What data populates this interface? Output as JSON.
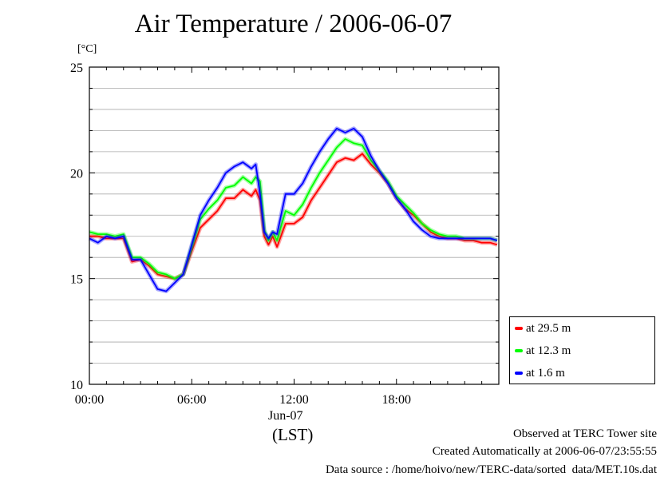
{
  "title": "Air Temperature / 2006-06-07",
  "unit_label": "[°C]",
  "date_label": "Jun-07",
  "tz_label": "(LST)",
  "footer": {
    "line1": "Observed at TERC Tower site",
    "line2": "Created Automatically at 2006-06-07/23:55:55",
    "line3": "Data source : /home/hoivo/new/TERC-data/sorted  data/MET.10s.dat"
  },
  "chart_data": {
    "type": "line",
    "title": "Air Temperature / 2006-06-07",
    "ylabel": "[°C]",
    "xlabel": "(LST)",
    "xlim": [
      0,
      24
    ],
    "ylim": [
      10,
      25
    ],
    "x_ticks": [
      {
        "value": 0,
        "label": "00:00"
      },
      {
        "value": 6,
        "label": "06:00"
      },
      {
        "value": 12,
        "label": "12:00"
      },
      {
        "value": 18,
        "label": "18:00"
      }
    ],
    "y_ticks": [
      10,
      15,
      20,
      25
    ],
    "grid": true,
    "legend_position": "right-bottom",
    "x": [
      0,
      0.5,
      1,
      1.5,
      2,
      2.5,
      3,
      3.5,
      4,
      4.5,
      5,
      5.5,
      6,
      6.5,
      7,
      7.5,
      8,
      8.5,
      9,
      9.5,
      9.75,
      10,
      10.25,
      10.5,
      10.75,
      11,
      11.5,
      12,
      12.5,
      13,
      13.5,
      14,
      14.5,
      15,
      15.5,
      16,
      16.5,
      17,
      17.5,
      18,
      18.5,
      19,
      19.5,
      20,
      20.5,
      21,
      21.5,
      22,
      22.5,
      23,
      23.5,
      23.9
    ],
    "series": [
      {
        "name": "at 29.5 m",
        "color": "#ff0000",
        "values": [
          17.0,
          17.0,
          16.9,
          16.9,
          16.9,
          15.8,
          15.9,
          15.6,
          15.2,
          15.1,
          15.0,
          15.2,
          16.3,
          17.4,
          17.8,
          18.2,
          18.8,
          18.8,
          19.2,
          18.9,
          19.2,
          18.7,
          17.0,
          16.6,
          17.0,
          16.5,
          17.6,
          17.6,
          17.9,
          18.7,
          19.3,
          19.9,
          20.5,
          20.7,
          20.6,
          20.9,
          20.4,
          20.0,
          19.5,
          18.8,
          18.3,
          18.0,
          17.6,
          17.2,
          17.0,
          16.9,
          16.9,
          16.8,
          16.8,
          16.7,
          16.7,
          16.6
        ]
      },
      {
        "name": "at 12.3 m",
        "color": "#00ff00",
        "values": [
          17.2,
          17.1,
          17.1,
          17.0,
          17.1,
          16.0,
          16.0,
          15.7,
          15.3,
          15.2,
          15.0,
          15.2,
          16.5,
          17.8,
          18.3,
          18.7,
          19.3,
          19.4,
          19.8,
          19.5,
          19.8,
          19.6,
          17.3,
          16.8,
          17.2,
          16.8,
          18.2,
          18.0,
          18.5,
          19.3,
          20.0,
          20.6,
          21.2,
          21.6,
          21.4,
          21.3,
          20.6,
          20.1,
          19.6,
          18.9,
          18.5,
          18.1,
          17.6,
          17.3,
          17.1,
          17.0,
          17.0,
          16.9,
          16.9,
          16.9,
          16.9,
          16.8
        ]
      },
      {
        "name": "at 1.6 m",
        "color": "#0000ff",
        "values": [
          16.9,
          16.7,
          17.0,
          16.9,
          17.0,
          15.9,
          15.9,
          15.2,
          14.5,
          14.4,
          14.8,
          15.2,
          16.6,
          18.0,
          18.7,
          19.3,
          20.0,
          20.3,
          20.5,
          20.2,
          20.4,
          19.0,
          17.2,
          16.9,
          17.2,
          17.1,
          19.0,
          19.0,
          19.5,
          20.3,
          21.0,
          21.6,
          22.1,
          21.9,
          22.1,
          21.7,
          20.8,
          20.1,
          19.5,
          18.8,
          18.3,
          17.7,
          17.3,
          17.0,
          16.9,
          16.9,
          16.9,
          16.9,
          16.9,
          16.9,
          16.9,
          16.8
        ]
      }
    ]
  }
}
